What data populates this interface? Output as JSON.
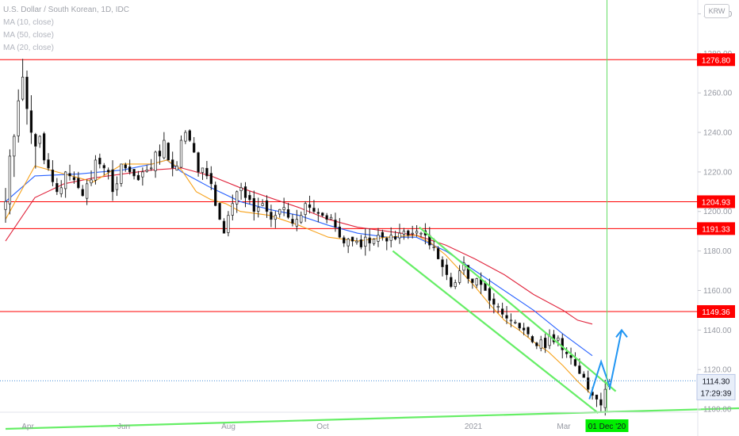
{
  "header": {
    "title": "U.S. Dollar / South Korean, 1D, IDC",
    "indicators": [
      "MA (10, close)",
      "MA (50, close)",
      "MA (20, close)"
    ],
    "currency_badge": "KRW"
  },
  "colors": {
    "up_candle": "#ffffff",
    "down_candle": "#000000",
    "wick": "#222222",
    "ma10": "#f7a21b",
    "ma50": "#2962ff",
    "ma20": "#e0243c",
    "hline": "#ff0000",
    "trend": "#66ee66",
    "vline": "#66dd66",
    "projection": "#2196f3",
    "price_line": "#4a90d9",
    "crosshair_date_bg": "#00ee00"
  },
  "chart_data": {
    "type": "candlestick",
    "title": "U.S. Dollar / South Korean, 1D, IDC",
    "y_axis": {
      "ticks": [
        1100,
        1120,
        1140,
        1160,
        1180,
        1200,
        1220,
        1240,
        1260,
        1280,
        1300
      ],
      "tick_labels": [
        "1100.00",
        "1120.00",
        "1140.00",
        "1160.00",
        "1180.00",
        "1200.00",
        "1220.00",
        "1240.00",
        "1260.00",
        "1280.00",
        "1300.00"
      ],
      "range": [
        1094,
        1307
      ]
    },
    "x_axis": {
      "labels": [
        "Apr",
        "Jun",
        "Aug",
        "Oct",
        "2021",
        "Mar",
        "Apr"
      ],
      "range_days": [
        0,
        360
      ]
    },
    "horizontal_levels": [
      {
        "value": 1276.8,
        "label": "1276.80"
      },
      {
        "value": 1204.93,
        "label": "1204.93"
      },
      {
        "value": 1191.33,
        "label": "1191.33"
      },
      {
        "value": 1149.36,
        "label": "1149.36"
      }
    ],
    "last_price": {
      "value": 1114.3,
      "label": "1114.30",
      "countdown": "17:29:39"
    },
    "crosshair_date": "01 Dec '20",
    "crosshair_day": 205,
    "closes": [
      1205,
      1228,
      1238,
      1256,
      1268,
      1252,
      1240,
      1233,
      1238,
      1226,
      1222,
      1215,
      1210,
      1212,
      1220,
      1218,
      1216,
      1212,
      1208,
      1214,
      1216,
      1226,
      1224,
      1222,
      1220,
      1210,
      1214,
      1224,
      1222,
      1220,
      1218,
      1216,
      1220,
      1221,
      1222,
      1230,
      1228,
      1236,
      1226,
      1222,
      1223,
      1236,
      1240,
      1236,
      1230,
      1220,
      1222,
      1218,
      1214,
      1203,
      1196,
      1189,
      1198,
      1204,
      1210,
      1212,
      1207,
      1206,
      1200,
      1202,
      1204,
      1200,
      1196,
      1198,
      1201,
      1202,
      1197,
      1194,
      1196,
      1198,
      1204,
      1202,
      1200,
      1199,
      1198,
      1196,
      1197,
      1192,
      1187,
      1184,
      1186,
      1185,
      1185,
      1182,
      1187,
      1184,
      1186,
      1188,
      1187,
      1185,
      1188,
      1186,
      1189,
      1190,
      1188,
      1189,
      1190,
      1189,
      1188,
      1183,
      1182,
      1176,
      1172,
      1168,
      1162,
      1164,
      1170,
      1174,
      1166,
      1164,
      1166,
      1163,
      1160,
      1155,
      1153,
      1152,
      1148,
      1146,
      1145,
      1144,
      1141,
      1140,
      1138,
      1134,
      1132,
      1135,
      1131,
      1137,
      1134,
      1136,
      1130,
      1128,
      1126,
      1122,
      1118,
      1116,
      1110,
      1107,
      1105,
      1102,
      1110,
      1114
    ],
    "ma10": [
      [
        0,
        1196
      ],
      [
        10,
        1223
      ],
      [
        20,
        1219
      ],
      [
        30,
        1215
      ],
      [
        40,
        1224
      ],
      [
        50,
        1224
      ],
      [
        55,
        1226
      ],
      [
        60,
        1221
      ],
      [
        65,
        1210
      ],
      [
        70,
        1206
      ],
      [
        75,
        1204
      ],
      [
        80,
        1200
      ],
      [
        90,
        1198
      ],
      [
        100,
        1193
      ],
      [
        110,
        1187
      ],
      [
        120,
        1185
      ],
      [
        130,
        1187
      ],
      [
        140,
        1188
      ],
      [
        145,
        1184
      ],
      [
        150,
        1178
      ],
      [
        155,
        1170
      ],
      [
        160,
        1162
      ],
      [
        165,
        1153
      ],
      [
        170,
        1145
      ],
      [
        175,
        1140
      ],
      [
        180,
        1134
      ],
      [
        185,
        1129
      ],
      [
        190,
        1122
      ],
      [
        195,
        1114
      ],
      [
        200,
        1107
      ]
    ],
    "ma50": [
      [
        0,
        1205
      ],
      [
        10,
        1218
      ],
      [
        25,
        1219
      ],
      [
        40,
        1221
      ],
      [
        50,
        1224
      ],
      [
        55,
        1226
      ],
      [
        60,
        1220
      ],
      [
        70,
        1212
      ],
      [
        80,
        1205
      ],
      [
        90,
        1201
      ],
      [
        100,
        1198
      ],
      [
        110,
        1193
      ],
      [
        120,
        1189
      ],
      [
        130,
        1187
      ],
      [
        140,
        1187
      ],
      [
        150,
        1180
      ],
      [
        160,
        1170
      ],
      [
        170,
        1160
      ],
      [
        180,
        1150
      ],
      [
        190,
        1138
      ],
      [
        200,
        1127
      ]
    ],
    "ma20": [
      [
        0,
        1185
      ],
      [
        10,
        1207
      ],
      [
        20,
        1214
      ],
      [
        30,
        1217
      ],
      [
        40,
        1219
      ],
      [
        50,
        1221
      ],
      [
        60,
        1222
      ],
      [
        70,
        1218
      ],
      [
        80,
        1212
      ],
      [
        90,
        1207
      ],
      [
        100,
        1202
      ],
      [
        110,
        1196
      ],
      [
        120,
        1192
      ],
      [
        130,
        1190
      ],
      [
        140,
        1188
      ],
      [
        150,
        1183
      ],
      [
        160,
        1176
      ],
      [
        170,
        1168
      ],
      [
        180,
        1158
      ],
      [
        190,
        1150
      ],
      [
        195,
        1145
      ],
      [
        200,
        1143
      ]
    ],
    "drawings": {
      "channel_upper": [
        [
          141,
          1192
        ],
        [
          208,
          1109
        ]
      ],
      "channel_lower": [
        [
          132,
          1180
        ],
        [
          202,
          1098
        ]
      ],
      "support_line": [
        [
          0,
          1090
        ],
        [
          360,
          1105
        ]
      ],
      "projection": [
        [
          199,
          1105
        ],
        [
          203,
          1124
        ],
        [
          206,
          1111
        ],
        [
          210,
          1140
        ]
      ]
    }
  }
}
